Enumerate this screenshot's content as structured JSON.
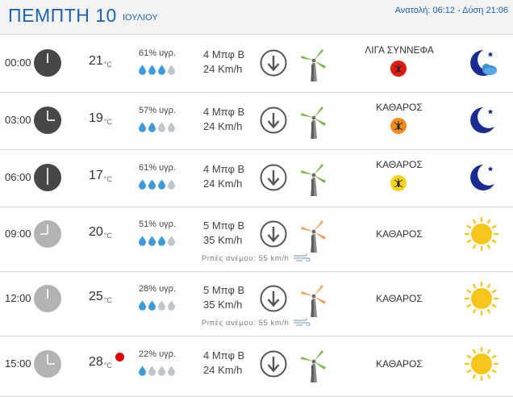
{
  "header": {
    "day": "ΠΕΜΠΤΗ 10",
    "month": "ΙΟΥΛΙΟΥ",
    "sun": "Ανατολή: 06:12  - Δύση 21:06"
  },
  "units": {
    "temp": "°C",
    "humidity_suffix": "% υγρ."
  },
  "gust_label": "Ριπές ανέμου: 55 km/h",
  "rows": [
    {
      "time": "00:00",
      "temp": "21",
      "unit": "°C",
      "humidity": "61% υγρ.",
      "drops_filled": 3,
      "wind_bf": "4 Μπφ Β",
      "wind_kmh": "24 Km/h",
      "condition": "ΛΙΓΑ ΣΥΝΝΕΦΑ",
      "mosquito_color": "#e11b0e",
      "night": true,
      "weather_icon": "moon-cloud-icon"
    },
    {
      "time": "03:00",
      "temp": "19",
      "unit": "°C",
      "humidity": "57% υγρ.",
      "drops_filled": 2,
      "wind_bf": "4 Μπφ Β",
      "wind_kmh": "24 Km/h",
      "condition": "ΚΑΘΑΡΟΣ",
      "mosquito_color": "#f08c1e",
      "night": true,
      "weather_icon": "moon-icon"
    },
    {
      "time": "06:00",
      "temp": "17",
      "unit": "°C",
      "humidity": "61% υγρ.",
      "drops_filled": 3,
      "wind_bf": "4 Μπφ Β",
      "wind_kmh": "24 Km/h",
      "condition": "ΚΑΘΑΡΟΣ",
      "mosquito_color": "#f5d31e",
      "night": true,
      "weather_icon": "moon-star-icon"
    },
    {
      "time": "09:00",
      "temp": "20",
      "unit": "°C",
      "humidity": "51% υγρ.",
      "drops_filled": 3,
      "wind_bf": "5 Μπφ Β",
      "wind_kmh": "35 Km/h",
      "condition": "ΚΑΘΑΡΟΣ",
      "night": false,
      "weather_icon": "sun-icon",
      "gust": true
    },
    {
      "time": "12:00",
      "temp": "25",
      "unit": "°C",
      "humidity": "28% υγρ.",
      "drops_filled": 2,
      "wind_bf": "5 Μπφ Β",
      "wind_kmh": "35 Km/h",
      "condition": "ΚΑΘΑΡΟΣ",
      "night": false,
      "weather_icon": "sun-icon",
      "gust": true
    },
    {
      "time": "15:00",
      "temp": "28",
      "unit": "°C",
      "humidity": "22% υγρ.",
      "drops_filled": 1,
      "wind_bf": "4 Μπφ Β",
      "wind_kmh": "24 Km/h",
      "condition": "ΚΑΘΑΡΟΣ",
      "night": false,
      "weather_icon": "sun-icon",
      "alert": true
    }
  ],
  "colors": {
    "accent": "#1e63b4",
    "clock_night": "#474747",
    "clock_day": "#b3b3b3",
    "drop_filled": "#3f9ad8",
    "drop_empty": "#bfc6cc",
    "turbine_green": "#7ab648",
    "turbine_orange": "#f0a05a",
    "moon": "#1c2b8f",
    "sun": "#f8c51a"
  }
}
